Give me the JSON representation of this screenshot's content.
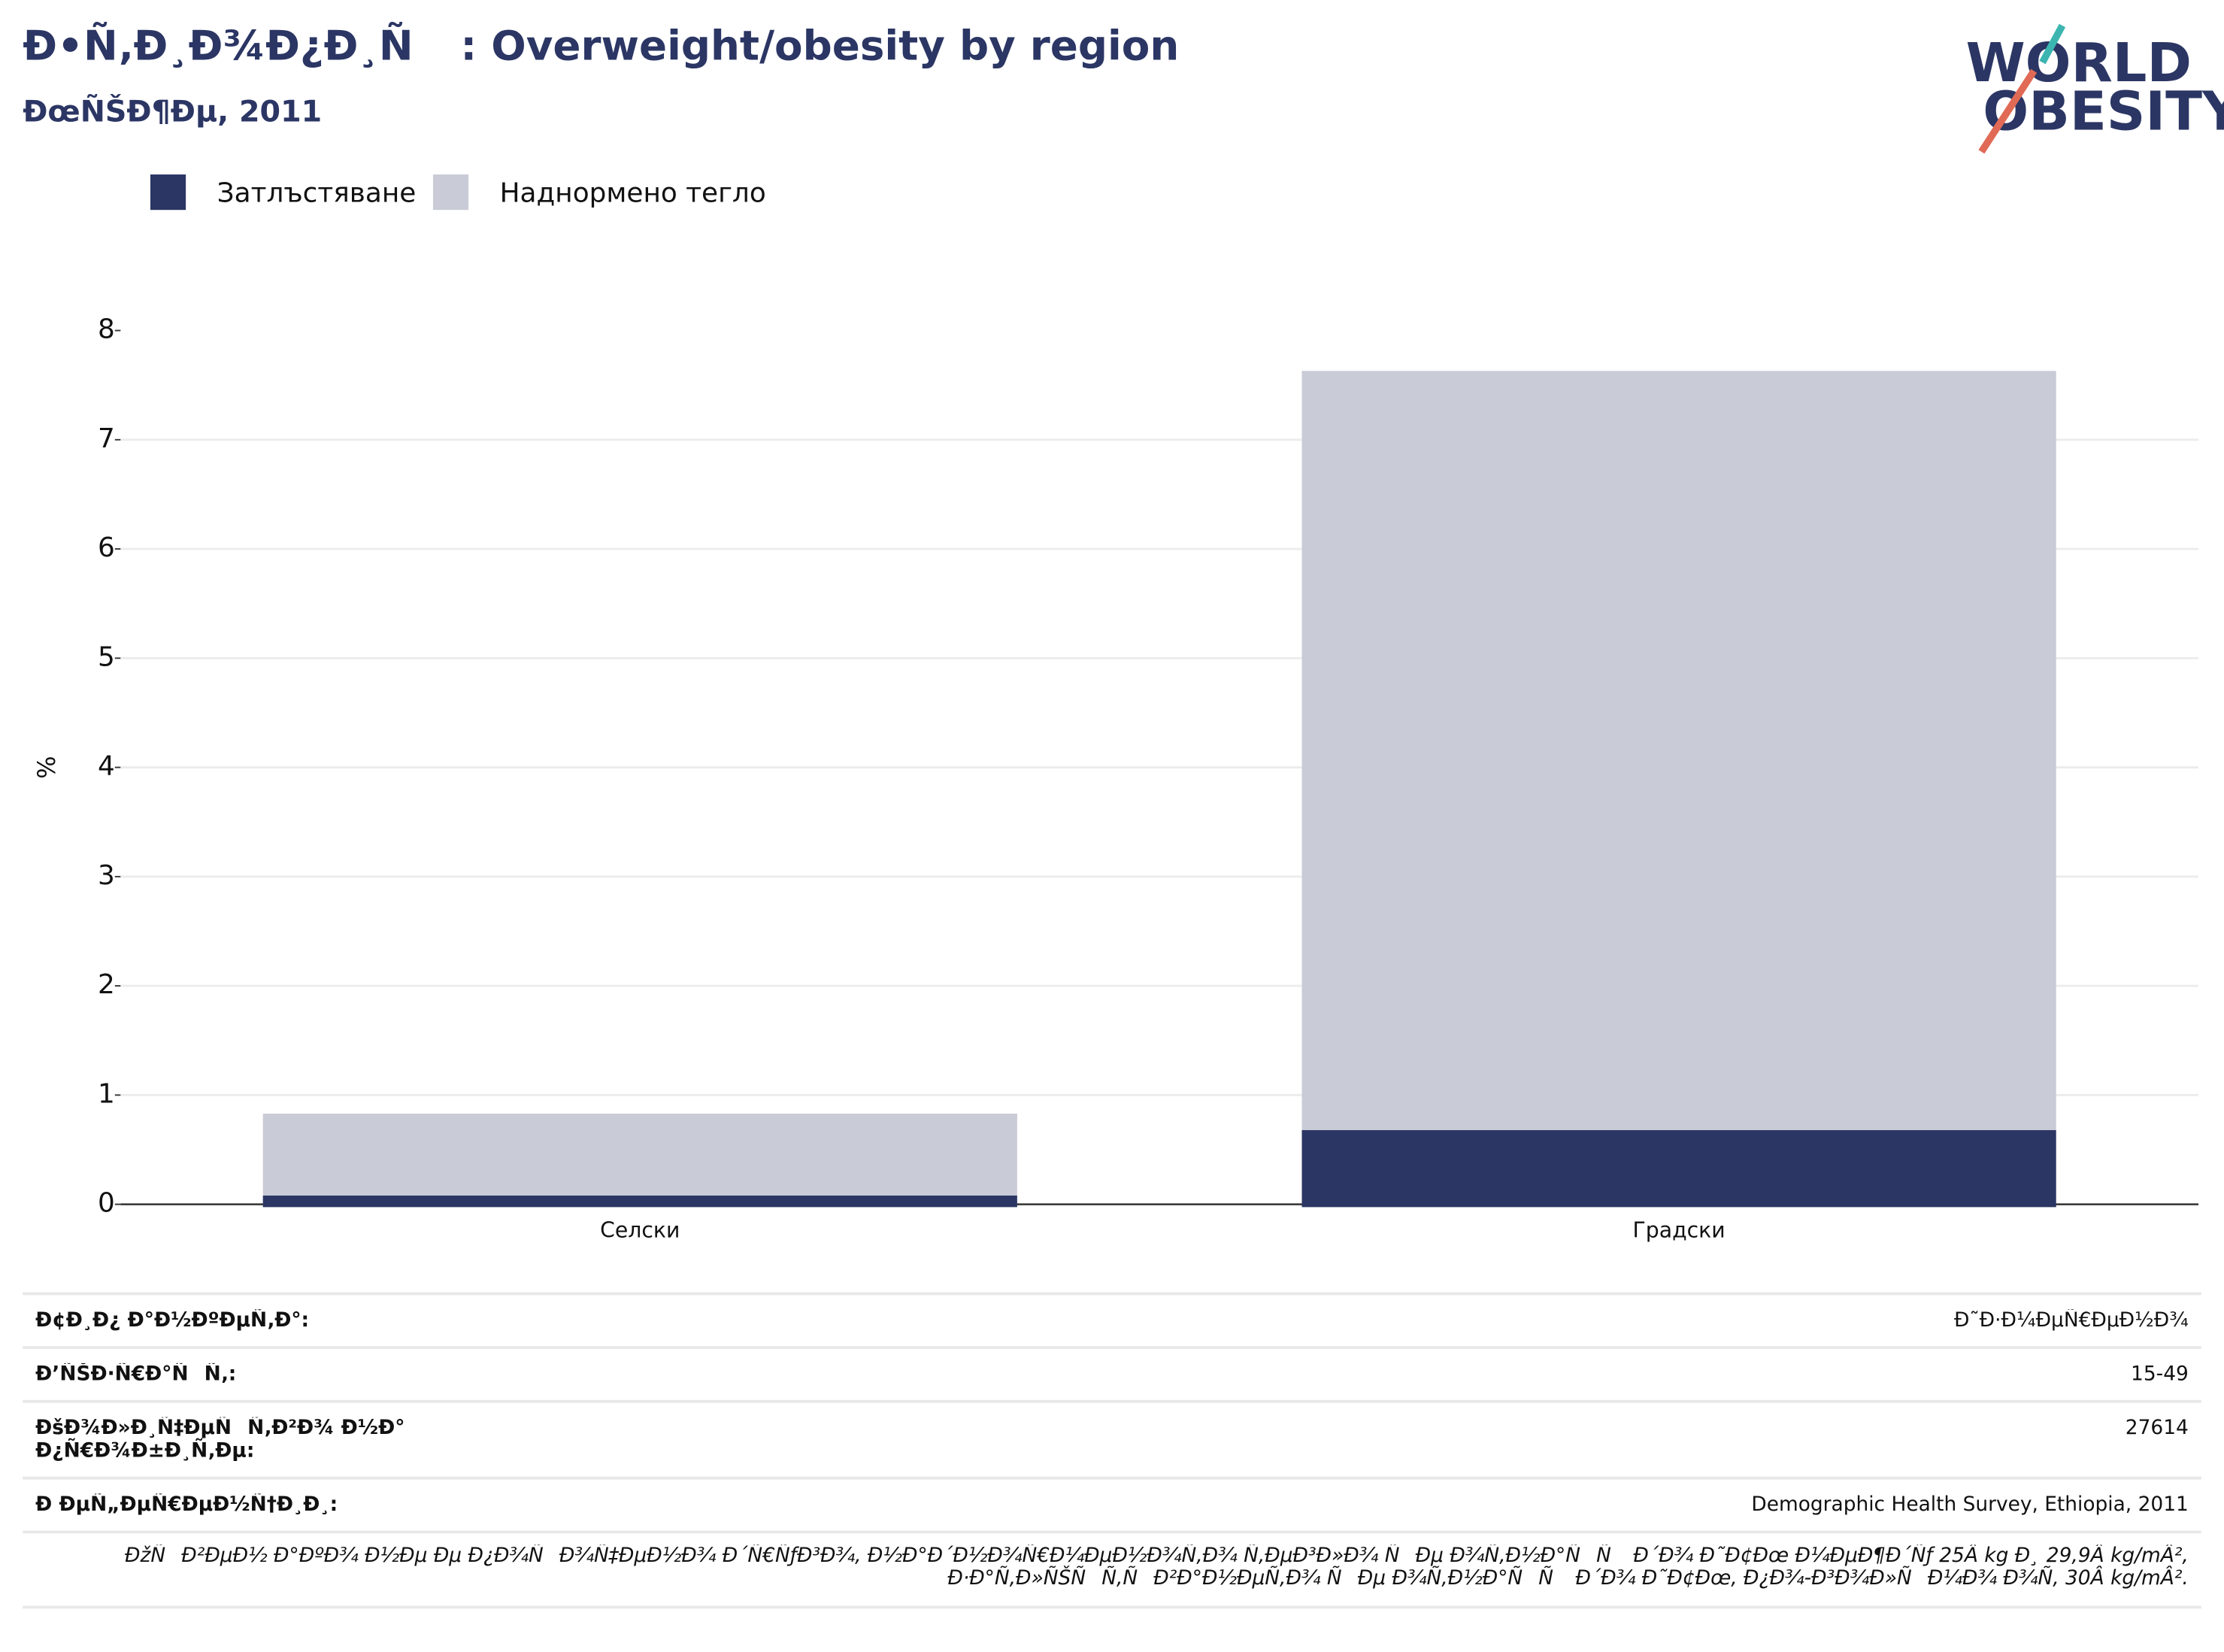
{
  "chart_data": {
    "type": "stacked_bar",
    "title": "Ð•Ñ‚Ð¸Ð¾Ð¿Ð¸Ñ : Overweight/obesity by region",
    "subtitle": "ÐœÑŠÐ¶Ðµ, 2011",
    "y_label": "%",
    "categories": [
      "Селски",
      "Градски"
    ],
    "series": [
      {
        "name": "Затлъстяване",
        "color": "#2b3664",
        "values": [
          0.08,
          0.68
        ]
      },
      {
        "name": "Наднормено тегло",
        "color": "#c9cbd6",
        "values": [
          0.75,
          6.95
        ]
      }
    ],
    "ylim": [
      0,
      8
    ],
    "yticks": [
      0,
      1,
      2,
      3,
      4,
      5,
      6,
      7,
      8
    ],
    "grid": true
  },
  "logo": [
    "WORLD",
    "OBESITY"
  ],
  "footer": {
    "rows": [
      [
        "Ð¢Ð¸Ð¿ Ð°Ð½ÐºÐµÑ‚Ð°:",
        "Ð˜Ð·Ð¼ÐµÑ€ÐµÐ½Ð¾"
      ],
      [
        "Ð’ÑŠÐ·Ñ€Ð°ÑÑ‚:",
        "15-49"
      ],
      [
        "ÐšÐ¾Ð»Ð¸Ñ‡ÐµÑÑ‚Ð²Ð¾ Ð½Ð° Ð¿Ñ€Ð¾Ð±Ð¸Ñ‚Ðµ:",
        "27614"
      ],
      [
        "Ð ÐµÑ„ÐµÑ€ÐµÐ½Ñ†Ð¸Ð¸:",
        "Demographic Health Survey, Ethiopia, 2011"
      ]
    ],
    "note": "ÐžÑÐ²ÐµÐ½ Ð°ÐºÐ¾ Ð½Ðµ Ðµ Ð¿Ð¾ÑÐ¾Ñ‡ÐµÐ½Ð¾ Ð´Ñ€ÑƒÐ³Ð¾, Ð½Ð°Ð´Ð½Ð¾Ñ€Ð¼ÐµÐ½Ð¾Ñ‚Ð¾ Ñ‚ÐµÐ³Ð»Ð¾ ÑÐµ Ð¾Ñ‚Ð½Ð°ÑÑ Ð´Ð¾ Ð˜Ð¢Ðœ Ð¼ÐµÐ¶Ð´Ñƒ 25Â kg Ð¸ 29,9Â kg/mÂ², Ð·Ð°Ñ‚Ð»ÑŠÑÑ‚ÑÐ²Ð°Ð½ÐµÑ‚Ð¾ ÑÐµ Ð¾Ñ‚Ð½Ð°ÑÑ Ð´Ð¾ Ð˜Ð¢Ðœ, Ð¿Ð¾-Ð³Ð¾Ð»ÑÐ¼Ð¾ Ð¾Ñ‚ 30Â kg/mÂ²."
  }
}
